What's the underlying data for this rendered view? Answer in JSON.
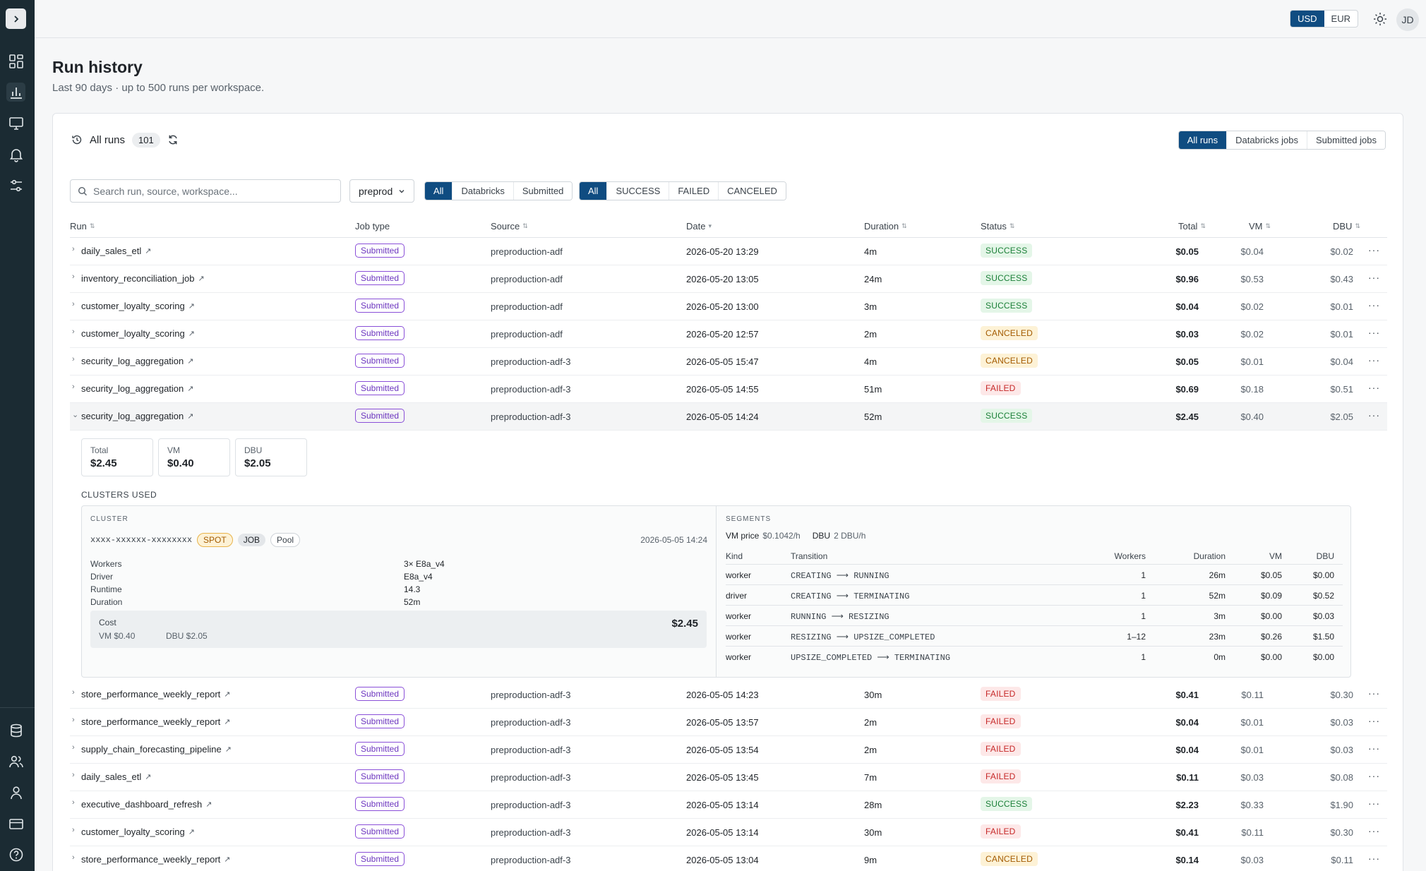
{
  "header": {
    "currency_usd": "USD",
    "currency_eur": "EUR",
    "avatar_initials": "JD",
    "active_currency": "USD"
  },
  "page": {
    "title": "Run history",
    "subtitle": "Last 90 days · up to 500 runs per workspace."
  },
  "runs": {
    "label": "All runs",
    "count": "101",
    "scope_tabs": [
      "All runs",
      "Databricks jobs",
      "Submitted jobs"
    ],
    "search_placeholder": "Search run, source, workspace...",
    "environment": "preprod",
    "type_filters": [
      "All",
      "Databricks",
      "Submitted"
    ],
    "status_filters": [
      "All",
      "SUCCESS",
      "FAILED",
      "CANCELED"
    ]
  },
  "columns": {
    "run": "Run",
    "job_type": "Job type",
    "source": "Source",
    "date": "Date",
    "duration": "Duration",
    "status": "Status",
    "total": "Total",
    "vm": "VM",
    "dbu": "DBU"
  },
  "rows": [
    {
      "name": "daily_sales_etl",
      "job_type": "Submitted",
      "source": "preproduction-adf",
      "date": "2026-05-20 13:29",
      "duration": "4m",
      "status": "SUCCESS",
      "total": "$0.05",
      "vm": "$0.04",
      "dbu": "$0.02"
    },
    {
      "name": "inventory_reconciliation_job",
      "job_type": "Submitted",
      "source": "preproduction-adf",
      "date": "2026-05-20 13:05",
      "duration": "24m",
      "status": "SUCCESS",
      "total": "$0.96",
      "vm": "$0.53",
      "dbu": "$0.43"
    },
    {
      "name": "customer_loyalty_scoring",
      "job_type": "Submitted",
      "source": "preproduction-adf",
      "date": "2026-05-20 13:00",
      "duration": "3m",
      "status": "SUCCESS",
      "total": "$0.04",
      "vm": "$0.02",
      "dbu": "$0.01"
    },
    {
      "name": "customer_loyalty_scoring",
      "job_type": "Submitted",
      "source": "preproduction-adf",
      "date": "2026-05-20 12:57",
      "duration": "2m",
      "status": "CANCELED",
      "total": "$0.03",
      "vm": "$0.02",
      "dbu": "$0.01"
    },
    {
      "name": "security_log_aggregation",
      "job_type": "Submitted",
      "source": "preproduction-adf-3",
      "date": "2026-05-05 15:47",
      "duration": "4m",
      "status": "CANCELED",
      "total": "$0.05",
      "vm": "$0.01",
      "dbu": "$0.04"
    },
    {
      "name": "security_log_aggregation",
      "job_type": "Submitted",
      "source": "preproduction-adf-3",
      "date": "2026-05-05 14:55",
      "duration": "51m",
      "status": "FAILED",
      "total": "$0.69",
      "vm": "$0.18",
      "dbu": "$0.51"
    },
    {
      "name": "security_log_aggregation",
      "job_type": "Submitted",
      "source": "preproduction-adf-3",
      "date": "2026-05-05 14:24",
      "duration": "52m",
      "status": "SUCCESS",
      "total": "$2.45",
      "vm": "$0.40",
      "dbu": "$2.05"
    },
    {
      "name": "store_performance_weekly_report",
      "job_type": "Submitted",
      "source": "preproduction-adf-3",
      "date": "2026-05-05 14:23",
      "duration": "30m",
      "status": "FAILED",
      "total": "$0.41",
      "vm": "$0.11",
      "dbu": "$0.30"
    },
    {
      "name": "store_performance_weekly_report",
      "job_type": "Submitted",
      "source": "preproduction-adf-3",
      "date": "2026-05-05 13:57",
      "duration": "2m",
      "status": "FAILED",
      "total": "$0.04",
      "vm": "$0.01",
      "dbu": "$0.03"
    },
    {
      "name": "supply_chain_forecasting_pipeline",
      "job_type": "Submitted",
      "source": "preproduction-adf-3",
      "date": "2026-05-05 13:54",
      "duration": "2m",
      "status": "FAILED",
      "total": "$0.04",
      "vm": "$0.01",
      "dbu": "$0.03"
    },
    {
      "name": "daily_sales_etl",
      "job_type": "Submitted",
      "source": "preproduction-adf-3",
      "date": "2026-05-05 13:45",
      "duration": "7m",
      "status": "FAILED",
      "total": "$0.11",
      "vm": "$0.03",
      "dbu": "$0.08"
    },
    {
      "name": "executive_dashboard_refresh",
      "job_type": "Submitted",
      "source": "preproduction-adf-3",
      "date": "2026-05-05 13:14",
      "duration": "28m",
      "status": "SUCCESS",
      "total": "$2.23",
      "vm": "$0.33",
      "dbu": "$1.90"
    },
    {
      "name": "customer_loyalty_scoring",
      "job_type": "Submitted",
      "source": "preproduction-adf-3",
      "date": "2026-05-05 13:14",
      "duration": "30m",
      "status": "FAILED",
      "total": "$0.41",
      "vm": "$0.11",
      "dbu": "$0.30"
    },
    {
      "name": "store_performance_weekly_report",
      "job_type": "Submitted",
      "source": "preproduction-adf-3",
      "date": "2026-05-05 13:04",
      "duration": "9m",
      "status": "CANCELED",
      "total": "$0.14",
      "vm": "$0.03",
      "dbu": "$0.11"
    }
  ],
  "detail": {
    "total_label": "Total",
    "total": "$2.45",
    "vm_label": "VM",
    "vm": "$0.40",
    "dbu_label": "DBU",
    "dbu": "$2.05",
    "clusters_used": "CLUSTERS USED",
    "cluster": {
      "caption": "CLUSTER",
      "id": "xxxx-xxxxxx-xxxxxxxx",
      "tags": [
        "SPOT",
        "JOB",
        "Pool"
      ],
      "date": "2026-05-05 14:24",
      "workers_label": "Workers",
      "workers": "3× E8a_v4",
      "driver_label": "Driver",
      "driver": "E8a_v4",
      "runtime_label": "Runtime",
      "runtime": "14.3",
      "duration_label": "Duration",
      "duration": "52m",
      "cost_label": "Cost",
      "cost_total": "$2.45",
      "cost_vm": "VM $0.40",
      "cost_dbu": "DBU $2.05"
    },
    "segments": {
      "caption": "SEGMENTS",
      "vm_price_label": "VM price",
      "vm_price": "$0.1042/h",
      "dbu_label": "DBU",
      "dbu_rate": "2 DBU/h",
      "columns": [
        "Kind",
        "Transition",
        "Workers",
        "Duration",
        "VM",
        "DBU"
      ],
      "rows": [
        {
          "kind": "worker",
          "transition": "CREATING ⟶ RUNNING",
          "workers": "1",
          "duration": "26m",
          "vm": "$0.05",
          "dbu": "$0.00"
        },
        {
          "kind": "driver",
          "transition": "CREATING ⟶ TERMINATING",
          "workers": "1",
          "duration": "52m",
          "vm": "$0.09",
          "dbu": "$0.52"
        },
        {
          "kind": "worker",
          "transition": "RUNNING ⟶ RESIZING",
          "workers": "1",
          "duration": "3m",
          "vm": "$0.00",
          "dbu": "$0.03"
        },
        {
          "kind": "worker",
          "transition": "RESIZING ⟶ UPSIZE_COMPLETED",
          "workers": "1–12",
          "duration": "23m",
          "vm": "$0.26",
          "dbu": "$1.50"
        },
        {
          "kind": "worker",
          "transition": "UPSIZE_COMPLETED ⟶ TERMINATING",
          "workers": "1",
          "duration": "0m",
          "vm": "$0.00",
          "dbu": "$0.00"
        }
      ]
    }
  }
}
